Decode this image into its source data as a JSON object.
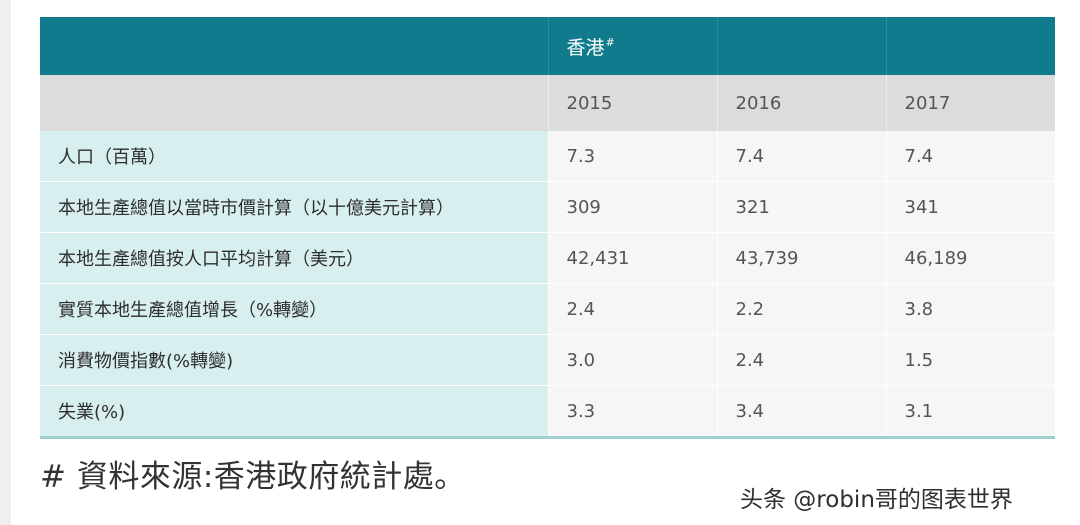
{
  "table": {
    "region_label": "香港",
    "region_marker": "#",
    "years": [
      "2015",
      "2016",
      "2017"
    ],
    "rows": [
      {
        "label": "人口（百萬）",
        "values": [
          "7.3",
          "7.4",
          "7.4"
        ]
      },
      {
        "label": "本地生產總值以當時市價計算（以十億美元計算）",
        "values": [
          "309",
          "321",
          "341"
        ]
      },
      {
        "label": "本地生產總值按人口平均計算（美元）",
        "values": [
          "42,431",
          "43,739",
          "46,189"
        ]
      },
      {
        "label": "實質本地生產總值增長（%轉變）",
        "values": [
          "2.4",
          "2.2",
          "3.8"
        ]
      },
      {
        "label": "消費物價指數(%轉變)",
        "values": [
          "3.0",
          "2.4",
          "1.5"
        ]
      },
      {
        "label": "失業(%)",
        "values": [
          "3.3",
          "3.4",
          "3.1"
        ]
      }
    ]
  },
  "source_note": "# 資料來源:香港政府統計處。",
  "watermark": "头条 @robin哥的图表世界",
  "colors": {
    "header_bg": "#0f7b8c",
    "year_row_bg": "#dcdcdc",
    "label_cell_bg": "#d8efef",
    "value_cell_bg": "#f6f6f6",
    "bottom_rule": "#9fd0d3"
  }
}
